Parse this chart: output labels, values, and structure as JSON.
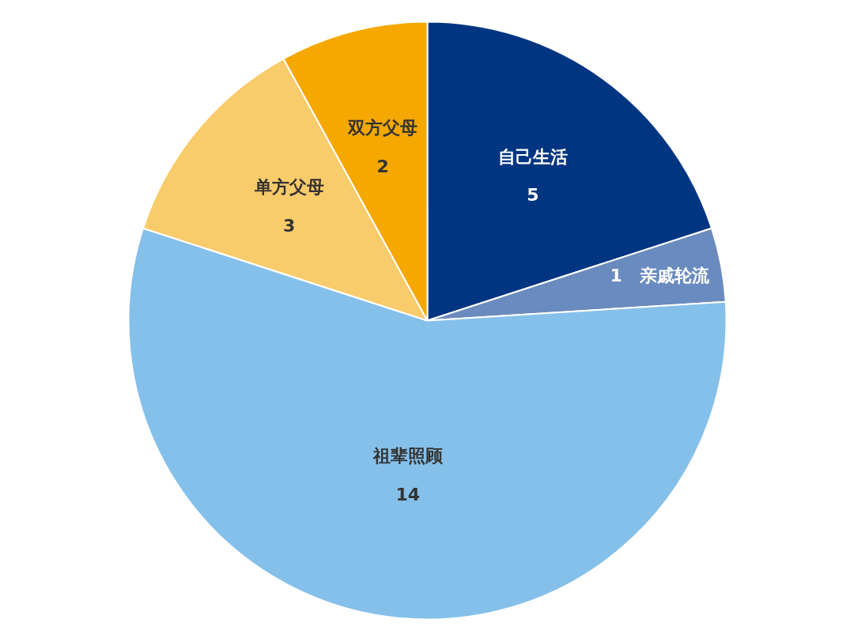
{
  "chart_data": {
    "type": "pie",
    "categories": [
      "自己生活",
      "亲戚轮流",
      "祖辈照顾",
      "单方父母",
      "双方父母"
    ],
    "values": [
      5,
      1,
      14,
      3,
      2
    ],
    "colors": [
      "#003582",
      "#6a8bbf",
      "#85c0ea",
      "#f8cb6b",
      "#f5a800"
    ],
    "data_labels": true
  }
}
